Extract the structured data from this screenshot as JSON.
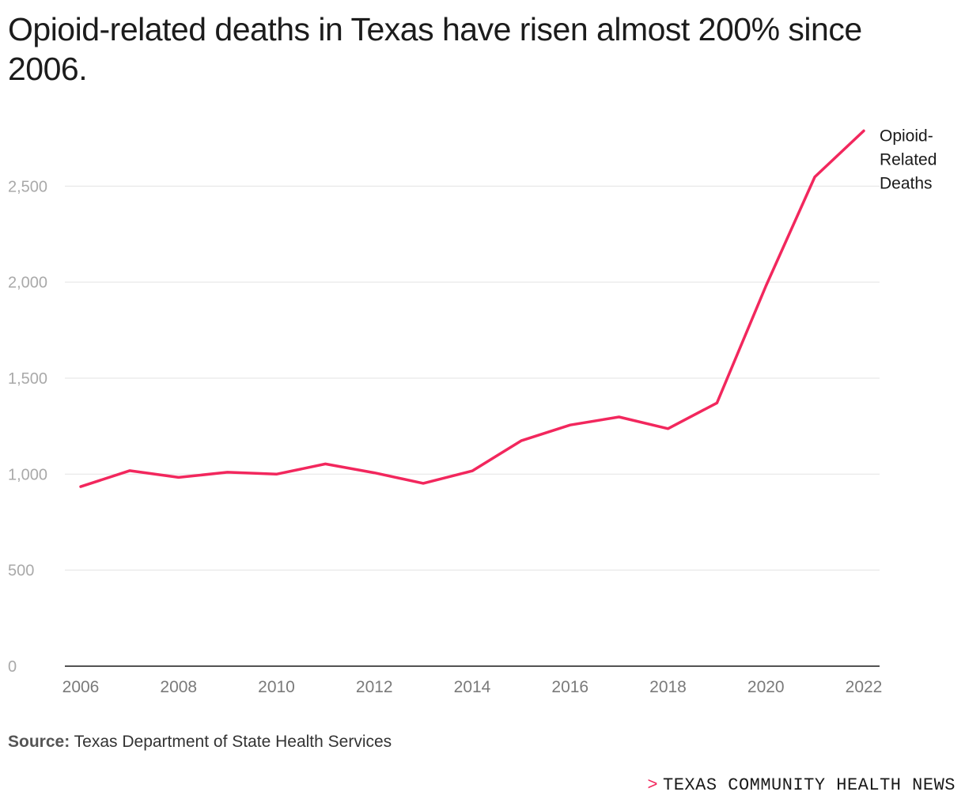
{
  "title": "Opioid-related deaths in Texas have risen almost 200% since 2006.",
  "chart_data": {
    "type": "line",
    "title": "Opioid-related deaths in Texas have risen almost 200% since 2006.",
    "xlabel": "",
    "ylabel": "",
    "x": [
      2006,
      2007,
      2008,
      2009,
      2010,
      2011,
      2012,
      2013,
      2014,
      2015,
      2016,
      2017,
      2018,
      2019,
      2020,
      2021,
      2022
    ],
    "series": [
      {
        "name": "Opioid-Related Deaths",
        "label_lines": [
          "Opioid-",
          "Related",
          "Deaths"
        ],
        "color": "#f2275d",
        "values": [
          935,
          1018,
          983,
          1010,
          1000,
          1053,
          1007,
          952,
          1017,
          1174,
          1256,
          1298,
          1237,
          1371,
          1980,
          2548,
          2788
        ]
      }
    ],
    "ylim": [
      0,
      2800
    ],
    "yticks": [
      0,
      500,
      1000,
      1500,
      2000,
      2500
    ],
    "ytick_labels": [
      "0",
      "500",
      "1,000",
      "1,500",
      "2,000",
      "2,500"
    ],
    "xticks": [
      2006,
      2008,
      2010,
      2012,
      2014,
      2016,
      2018,
      2020,
      2022
    ],
    "xtick_labels": [
      "2006",
      "2008",
      "2010",
      "2012",
      "2014",
      "2016",
      "2018",
      "2020",
      "2022"
    ],
    "grid": true,
    "legend": "end-of-line label"
  },
  "source": {
    "label": "Source:",
    "text": "Texas Department of State Health Services"
  },
  "brand": {
    "caret": ">",
    "name": "TEXAS COMMUNITY HEALTH NEWS",
    "accent_color": "#f2275d"
  }
}
